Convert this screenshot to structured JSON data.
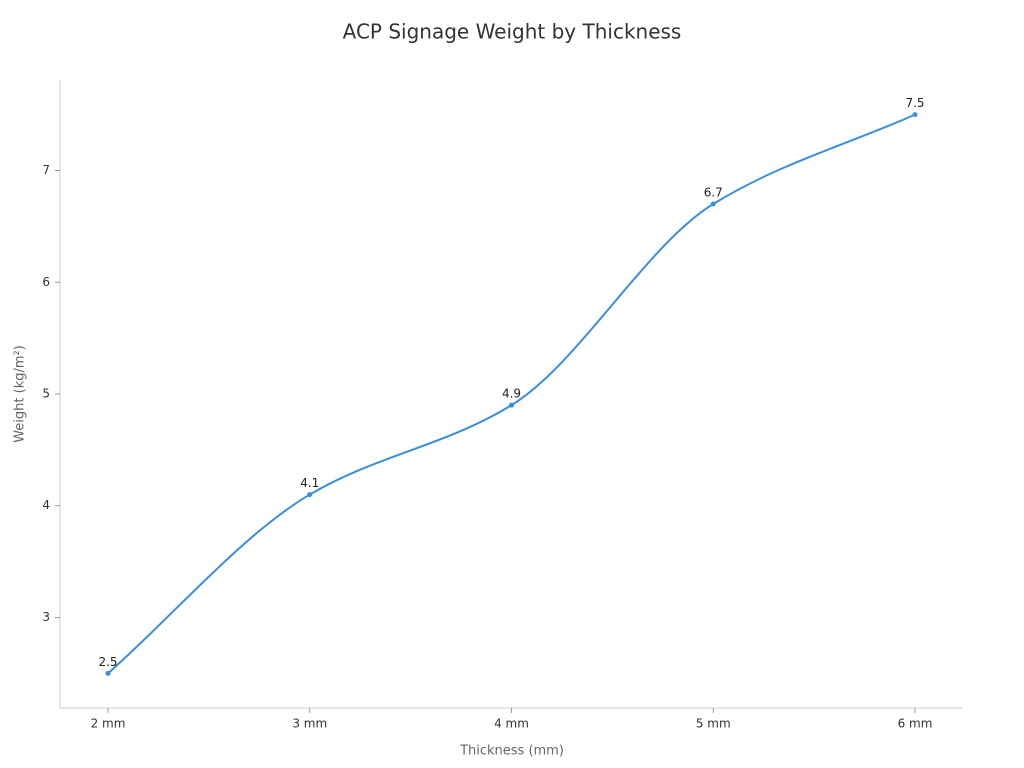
{
  "chart_data": {
    "type": "line",
    "title": "ACP Signage Weight by Thickness",
    "x_label": "Thickness (mm)",
    "y_label": "Weight (kg/m²)",
    "categories": [
      "2 mm",
      "3 mm",
      "4 mm",
      "5 mm",
      "6 mm"
    ],
    "series": [
      {
        "name": "Weight",
        "color": "#3a8ee0",
        "values": [
          2.5,
          4.1,
          4.9,
          6.7,
          7.5
        ]
      }
    ],
    "ylim": [
      2.19,
      7.81
    ],
    "yticks": [
      3,
      4,
      5,
      6,
      7
    ],
    "grid": false
  }
}
